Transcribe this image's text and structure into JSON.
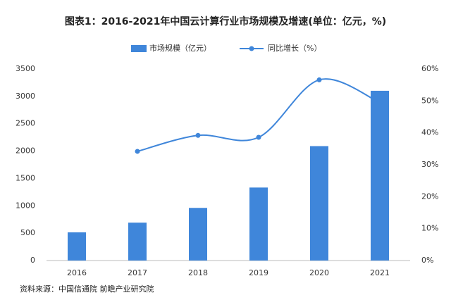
{
  "chart_data": {
    "type": "bar-line",
    "title": "图表1：2016-2021年中国云计算行业市场规模及增速(单位：亿元，%)",
    "source": "资料来源：中国信通院 前瞻产业研究院",
    "categories": [
      "2016",
      "2017",
      "2018",
      "2019",
      "2020",
      "2021"
    ],
    "series": [
      {
        "name": "市场规模（亿元）",
        "type": "bar",
        "color": "#3f86da",
        "values": [
          515,
          692,
          962,
          1334,
          2091,
          3102
        ]
      },
      {
        "name": "同比增长（%）",
        "type": "line",
        "smooth": true,
        "axis": "y2",
        "color": "#3f86da",
        "values": [
          null,
          34.2,
          39.2,
          38.6,
          56.6,
          49.5
        ]
      }
    ],
    "ylim": [
      0,
      3500
    ],
    "yticks": [
      0,
      500,
      1000,
      1500,
      2000,
      2500,
      3000,
      3500
    ],
    "y2lim": [
      0,
      60
    ],
    "y2ticks": [
      {
        "value": 0,
        "label": "0%"
      },
      {
        "value": 10,
        "label": "10%"
      },
      {
        "value": 20,
        "label": "20%"
      },
      {
        "value": 30,
        "label": "30%"
      },
      {
        "value": 40,
        "label": "40%"
      },
      {
        "value": 50,
        "label": "50%"
      },
      {
        "value": 60,
        "label": "60%"
      }
    ],
    "grid": false,
    "legend": "top"
  }
}
